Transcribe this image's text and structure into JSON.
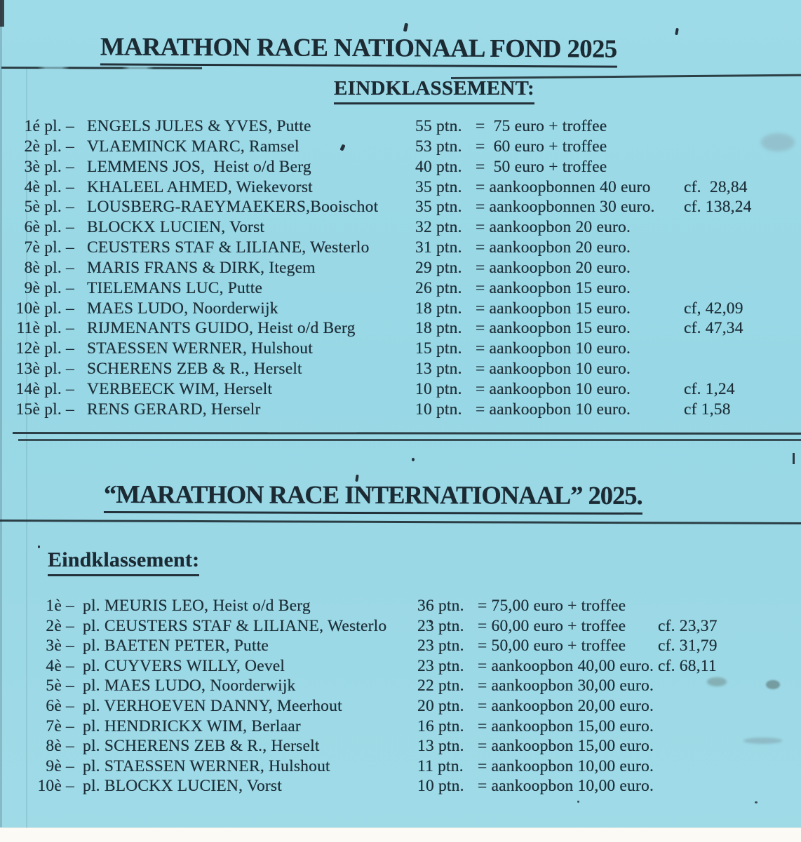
{
  "page": {
    "background_color": "#9bd8e6",
    "text_color": "#1d2f38",
    "kind": "scanned results sheet (pigeon racing)"
  },
  "section_national": {
    "title": "MARATHON RACE NATIONAAL FOND 2025",
    "subtitle": "EINDKLASSEMENT:",
    "rows": [
      {
        "place": "1é pl. –",
        "name": "ENGELS JULES & YVES, Putte",
        "points": "55 ptn.",
        "prize": "=  75 euro + troffee",
        "cf": ""
      },
      {
        "place": "2è pl. –",
        "name": "VLAEMINCK MARC, Ramsel",
        "points": "53 ptn.",
        "prize": "=  60 euro + troffee",
        "cf": ""
      },
      {
        "place": "3è pl. –",
        "name": "LEMMENS JOS,  Heist o/d Berg",
        "points": "40 ptn.",
        "prize": "=  50 euro + troffee",
        "cf": ""
      },
      {
        "place": "4è pl. –",
        "name": "KHALEEL AHMED, Wiekevorst",
        "points": "35 ptn.",
        "prize": "= aankoopbonnen 40 euro",
        "cf": "cf.  28,84"
      },
      {
        "place": "5è pl. –",
        "name": "LOUSBERG-RAEYMAEKERS,Booischot",
        "points": "35 ptn.",
        "prize": "= aankoopbonnen 30 euro.",
        "cf": "cf. 138,24"
      },
      {
        "place": "6è pl. –",
        "name": "BLOCKX LUCIEN, Vorst",
        "points": "32 ptn.",
        "prize": "= aankoopbon 20 euro.",
        "cf": ""
      },
      {
        "place": "7è pl. –",
        "name": "CEUSTERS STAF & LILIANE, Westerlo",
        "points": "31 ptn.",
        "prize": "= aankoopbon 20 euro.",
        "cf": ""
      },
      {
        "place": "8è pl. –",
        "name": "MARIS FRANS & DIRK, Itegem",
        "points": "29 ptn.",
        "prize": "= aankoopbon 20 euro.",
        "cf": ""
      },
      {
        "place": "9è pl. –",
        "name": "TIELEMANS LUC, Putte",
        "points": "26 ptn.",
        "prize": "= aankoopbon 15 euro.",
        "cf": ""
      },
      {
        "place": "10è pl. –",
        "name": "MAES LUDO, Noorderwijk",
        "points": "18 ptn.",
        "prize": "= aankoopbon 15 euro.",
        "cf": "cf, 42,09"
      },
      {
        "place": "11è pl. –",
        "name": "RIJMENANTS GUIDO, Heist o/d Berg",
        "points": "18 ptn.",
        "prize": "= aankoopbon 15 euro.",
        "cf": "cf. 47,34"
      },
      {
        "place": "12è pl. –",
        "name": "STAESSEN WERNER, Hulshout",
        "points": "15 ptn.",
        "prize": "= aankoopbon 10 euro.",
        "cf": ""
      },
      {
        "place": "13è pl. –",
        "name": "SCHERENS ZEB & R., Herselt",
        "points": "13 ptn.",
        "prize": "= aankoopbon 10 euro.",
        "cf": ""
      },
      {
        "place": "14è pl. –",
        "name": "VERBEECK WIM, Herselt",
        "points": "10 ptn.",
        "prize": "= aankoopbon 10 euro.",
        "cf": "cf. 1,24"
      },
      {
        "place": "15è pl. –",
        "name": "RENS GERARD, Herselr",
        "points": "10 ptn.",
        "prize": "= aankoopbon 10 euro.",
        "cf": "cf 1,58"
      }
    ]
  },
  "section_international": {
    "title": "“MARATHON RACE INTERNATIONAAL” 2025.",
    "subtitle": "Eindklassement:",
    "rows": [
      {
        "place": "1è –",
        "name": "pl. MEURIS LEO, Heist o/d Berg",
        "points": "36 ptn.",
        "prize": "= 75,00 euro + troffee",
        "cf": ""
      },
      {
        "place": "2è –",
        "name": "pl. CEUSTERS STAF & LILIANE, Westerlo",
        "points": "23 ptn.",
        "prize": "= 60,00 euro + troffee",
        "cf": "cf. 23,37"
      },
      {
        "place": "3è –",
        "name": "pl. BAETEN PETER, Putte",
        "points": "23 ptn.",
        "prize": "= 50,00 euro + troffee",
        "cf": "cf. 31,79"
      },
      {
        "place": "4è –",
        "name": "pl. CUYVERS WILLY, Oevel",
        "points": "23 ptn.",
        "prize": "= aankoopbon 40,00 euro.",
        "cf": "cf. 68,11"
      },
      {
        "place": "5è –",
        "name": "pl. MAES LUDO, Noorderwijk",
        "points": "22 ptn.",
        "prize": "= aankoopbon 30,00 euro.",
        "cf": ""
      },
      {
        "place": "6è –",
        "name": "pl. VERHOEVEN DANNY, Meerhout",
        "points": "20 ptn.",
        "prize": "= aankoopbon 20,00 euro.",
        "cf": ""
      },
      {
        "place": "7è –",
        "name": "pl. HENDRICKX WIM, Berlaar",
        "points": "16 ptn.",
        "prize": "= aankoopbon 15,00 euro.",
        "cf": ""
      },
      {
        "place": "8è –",
        "name": "pl. SCHERENS ZEB & R., Herselt",
        "points": "13 ptn.",
        "prize": "= aankoopbon 15,00 euro.",
        "cf": ""
      },
      {
        "place": "9è –",
        "name": "pl. STAESSEN WERNER, Hulshout",
        "points": "11 ptn.",
        "prize": "= aankoopbon 10,00 euro.",
        "cf": ""
      },
      {
        "place": "10è –",
        "name": "pl. BLOCKX LUCIEN, Vorst",
        "points": "10 ptn.",
        "prize": "= aankoopbon 10,00 euro.",
        "cf": ""
      }
    ]
  }
}
